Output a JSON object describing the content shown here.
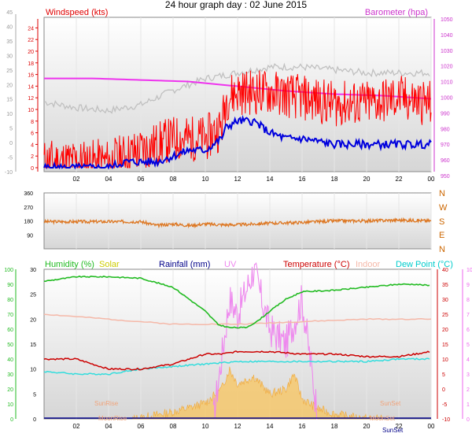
{
  "header": {
    "title": "24 hour graph day : 02 June 2015"
  },
  "chart_data": [
    {
      "type": "line",
      "panel": "wind-pressure",
      "x_ticks": [
        "02",
        "04",
        "06",
        "08",
        "10",
        "12",
        "14",
        "16",
        "18",
        "20",
        "22",
        "00"
      ],
      "left_axis": {
        "label": "Windspeed (kts)",
        "color": "#e00000",
        "ticks": [
          "0",
          "2",
          "4",
          "6",
          "8",
          "10",
          "12",
          "14",
          "16",
          "18",
          "20",
          "22",
          "24"
        ],
        "ylim": [
          0,
          25
        ]
      },
      "outer_axis": {
        "ticks": [
          "-10",
          "-5",
          "0",
          "5",
          "10",
          "15",
          "20",
          "25",
          "30",
          "35",
          "40",
          "45"
        ],
        "ylim": [
          -10,
          45
        ]
      },
      "right_axis": {
        "label": "Barometer (hpa)",
        "color": "#cc33cc",
        "ticks": [
          "950",
          "960",
          "970",
          "980",
          "990",
          "1000",
          "1010",
          "1020",
          "1030",
          "1040",
          "1050"
        ],
        "ylim": [
          955,
          1050
        ]
      },
      "series": [
        {
          "name": "Windspeed (kts)",
          "color": "#ff0000",
          "hours": [
            0,
            4,
            5,
            6,
            7,
            8,
            9,
            10,
            11,
            11.3,
            12,
            14,
            16,
            18,
            20,
            22,
            24
          ],
          "values": [
            1,
            1,
            2,
            3,
            4,
            5,
            5,
            5,
            7,
            12,
            13,
            13,
            12,
            11,
            11,
            12,
            11
          ]
        },
        {
          "name": "Barometer (hpa)",
          "color": "#ee33ee",
          "hours": [
            0,
            3,
            6,
            9,
            12,
            15,
            18,
            21,
            24
          ],
          "values": [
            1012,
            1012,
            1011,
            1010,
            1007,
            1004,
            1002,
            1001,
            999
          ]
        },
        {
          "color": "#c0c0c0",
          "hours": [
            0,
            2,
            4,
            6,
            8,
            10,
            11,
            12,
            14,
            16,
            18,
            20,
            22,
            24
          ],
          "values": [
            14,
            12,
            11,
            13,
            18,
            22,
            23,
            24,
            26,
            26,
            25,
            24,
            24,
            24
          ]
        },
        {
          "color": "#0000dd",
          "hours": [
            0,
            1,
            2,
            3,
            4,
            5,
            6,
            7,
            8,
            9,
            10,
            11,
            11.3,
            12,
            13,
            14,
            15,
            16,
            18,
            20,
            22,
            24
          ],
          "values": [
            0,
            0,
            0,
            0,
            0,
            1,
            1,
            1,
            2,
            3,
            3,
            5,
            7,
            8,
            8,
            6,
            5,
            5,
            4,
            4,
            4,
            4
          ]
        }
      ]
    },
    {
      "type": "line",
      "panel": "wind-direction",
      "left_axis": {
        "ticks": [
          "90",
          "180",
          "270",
          "360"
        ],
        "ylim": [
          0,
          360
        ]
      },
      "right_axis": {
        "ticks": [
          "N",
          "W",
          "S",
          "E",
          "N"
        ]
      },
      "series": [
        {
          "color": "#dd7722",
          "hours": [
            0,
            3,
            6,
            7,
            8,
            9,
            10,
            11,
            12,
            14,
            16,
            18,
            20,
            22,
            24
          ],
          "values": [
            175,
            175,
            175,
            150,
            160,
            150,
            160,
            155,
            155,
            165,
            170,
            180,
            180,
            185,
            180
          ]
        }
      ]
    },
    {
      "type": "line",
      "panel": "humidity-temperature",
      "legend": [
        {
          "label": "Humidity (%)",
          "color": "#22bb22"
        },
        {
          "label": "Solar",
          "color": "#cccc00"
        },
        {
          "label": "Rainfall (mm)",
          "color": "#000088"
        },
        {
          "label": "UV",
          "color": "#ee88ee"
        },
        {
          "label": "Temperature (°C)",
          "color": "#cc0000"
        },
        {
          "label": "Indoor",
          "color": "#f5b8a8"
        },
        {
          "label": "Dew Point (°C)",
          "color": "#00cccc"
        }
      ],
      "humidity_axis": {
        "ticks": [
          "0",
          "10",
          "20",
          "30",
          "40",
          "50",
          "60",
          "70",
          "80",
          "90",
          "100"
        ],
        "ylim": [
          0,
          100
        ]
      },
      "left_axis": {
        "ticks": [
          "0",
          "5",
          "10",
          "15",
          "20",
          "25",
          "30"
        ],
        "ylim": [
          0,
          30
        ]
      },
      "right_axis": {
        "ticks": [
          "-10",
          "-5",
          "0",
          "5",
          "10",
          "15",
          "20",
          "25",
          "30",
          "35",
          "40"
        ],
        "ylim": [
          -10,
          40
        ]
      },
      "uv_axis": {
        "ticks": [
          "0",
          "1",
          "2",
          "3",
          "4",
          "5",
          "6",
          "7",
          "8",
          "9",
          "10"
        ],
        "ylim": [
          0,
          10
        ]
      },
      "annotations": [
        "SunRise",
        "MoonRise",
        "SunSet",
        "MoonSet",
        "SunSet"
      ],
      "series": [
        {
          "name": "Humidity (%)",
          "color": "#22bb22",
          "hours": [
            0,
            2,
            4,
            6,
            8,
            9,
            10,
            10.8,
            11.5,
            12.5,
            13.2,
            14,
            15,
            16,
            18,
            20,
            22,
            23,
            24
          ],
          "values": [
            92,
            95,
            95,
            94,
            88,
            80,
            72,
            63,
            61,
            61,
            65,
            72,
            80,
            85,
            86,
            88,
            90,
            90,
            89
          ]
        },
        {
          "name": "Temperature (°C)",
          "color": "#cc0000",
          "hours": [
            0,
            2,
            4,
            6,
            8,
            10,
            11,
            12,
            14,
            16,
            18,
            20,
            22,
            24
          ],
          "values": [
            12,
            12,
            10,
            10,
            11,
            13,
            13,
            13.5,
            13.5,
            13,
            13,
            12.5,
            12.5,
            13.5
          ]
        },
        {
          "name": "Indoor",
          "color": "#f5b8a8",
          "hours": [
            0,
            4,
            8,
            12,
            16,
            20,
            24
          ],
          "values": [
            21,
            20,
            19,
            19,
            19.5,
            20,
            20
          ]
        },
        {
          "name": "Dew Point (°C)",
          "color": "#33dddd",
          "hours": [
            0,
            2,
            4,
            6,
            8,
            10,
            12,
            14,
            16,
            18,
            20,
            22,
            24
          ],
          "values": [
            9.5,
            9,
            9,
            10,
            10.5,
            11,
            11.5,
            11.5,
            11.5,
            11.5,
            11.5,
            12,
            12
          ]
        },
        {
          "name": "Solar",
          "color": "#f7c765",
          "hours": [
            5.5,
            6,
            7,
            8,
            9,
            10,
            11,
            11.5,
            12,
            13,
            14,
            15,
            15.5,
            16,
            17,
            18,
            19,
            20,
            21
          ],
          "values": [
            0,
            0.2,
            0.8,
            1.4,
            2.2,
            3.2,
            6,
            10,
            7,
            8.5,
            5,
            6,
            9,
            4,
            2,
            1,
            0.4,
            0.1,
            0
          ]
        },
        {
          "name": "UV",
          "color": "#ee88ee",
          "hours": [
            10.5,
            11,
            11.5,
            12,
            13,
            14,
            15,
            16,
            17
          ],
          "values": [
            0,
            4,
            8,
            7,
            10,
            6,
            5,
            8,
            0
          ]
        }
      ]
    }
  ]
}
